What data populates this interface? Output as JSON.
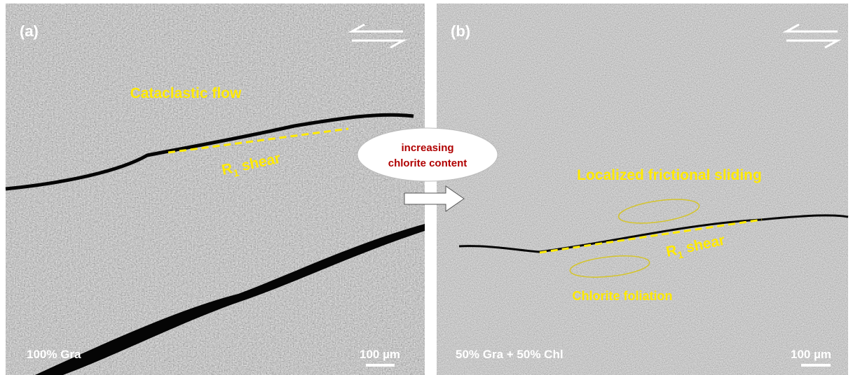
{
  "panel_a": {
    "label": "(a)",
    "regime": "Cataclastic flow",
    "shear": {
      "main": "R",
      "sub": "1",
      "rest": "shear"
    },
    "composition": "100% Gra",
    "scale": "100 µm"
  },
  "transition": {
    "line1": "increasing",
    "line2": "chlorite content"
  },
  "panel_b": {
    "label": "(b)",
    "regime": "Localized frictional sliding",
    "shear": {
      "main": "R",
      "sub": "1",
      "rest": "shear"
    },
    "foliation": "Chlorite foliation",
    "composition": "50% Gra + 50% Chl",
    "scale": "100 µm"
  }
}
